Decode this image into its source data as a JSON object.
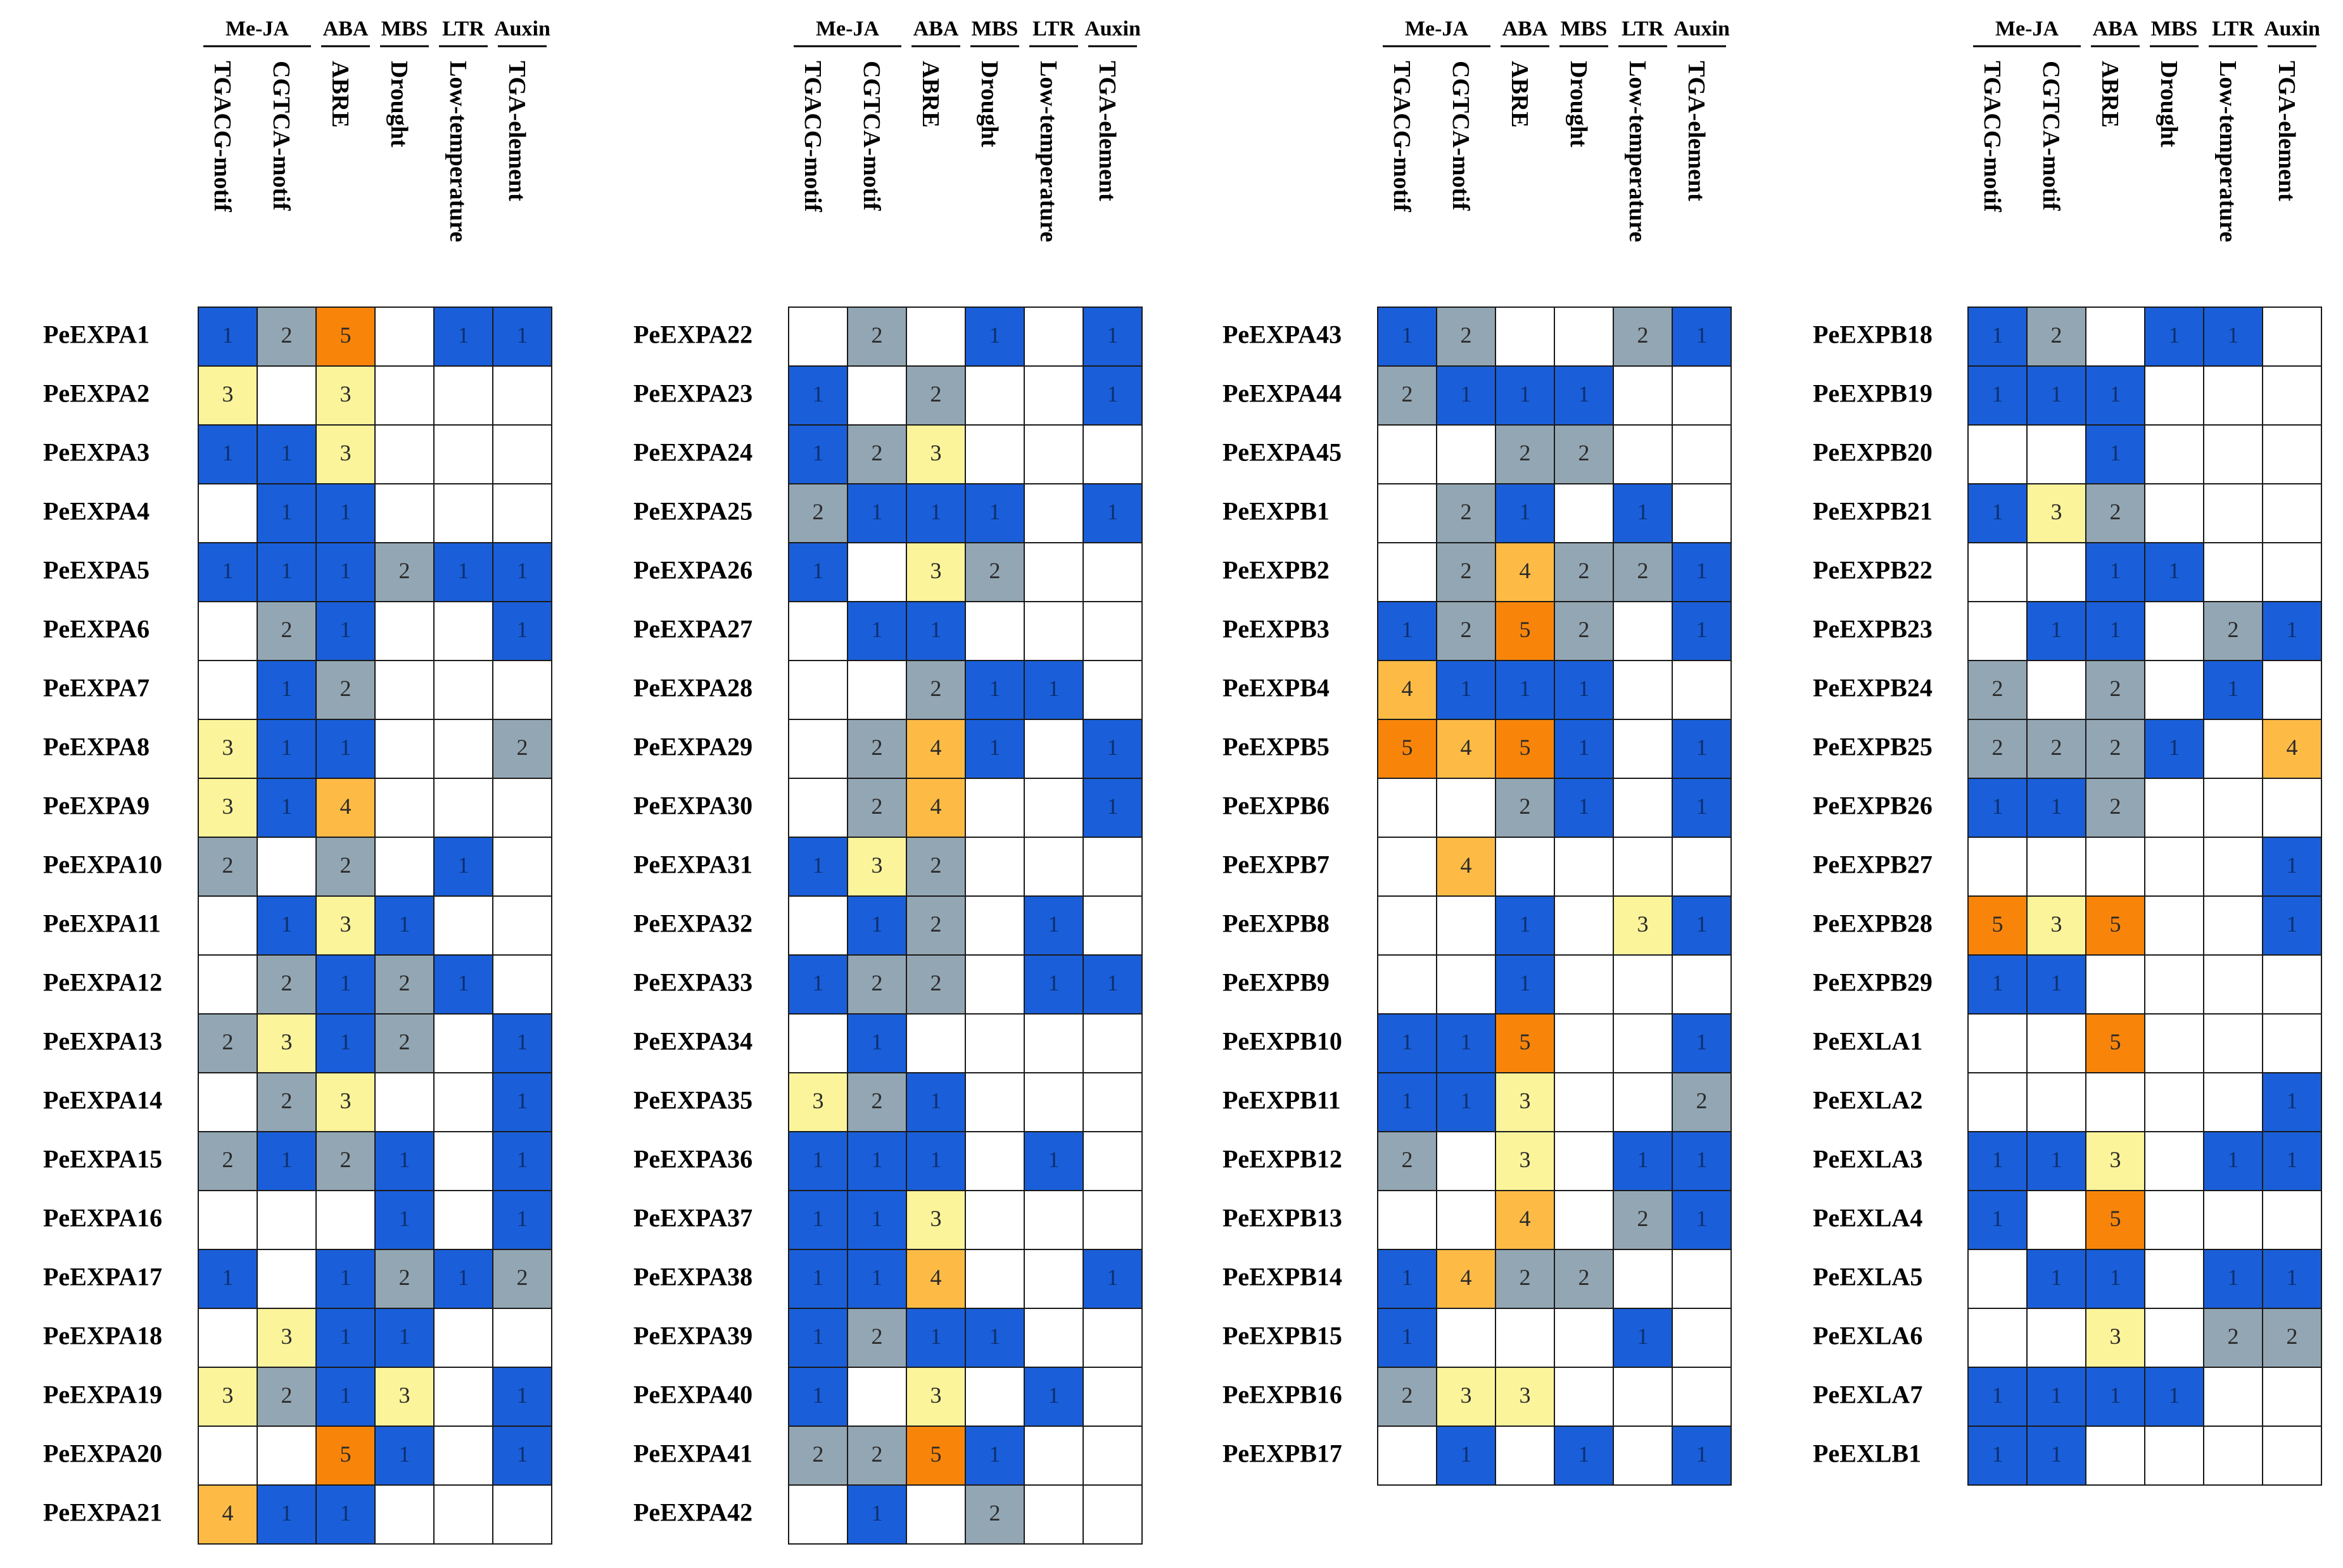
{
  "chart_data": {
    "type": "heatmap",
    "groups": [
      {
        "label": "Me-JA",
        "span": 2
      },
      {
        "label": "ABA",
        "span": 1
      },
      {
        "label": "MBS",
        "span": 1
      },
      {
        "label": "LTR",
        "span": 1
      },
      {
        "label": "Auxin",
        "span": 1
      }
    ],
    "columns": [
      "TGACG-motif",
      "CGTCA-motif",
      "ABRE",
      "Drought",
      "Low-temperature",
      "TGA-element"
    ],
    "color_scale": {
      "0": "#ffffff",
      "1": "#1a5fd9",
      "2": "#93a6b3",
      "3": "#fbf49a",
      "4": "#fdbb45",
      "5": "#f8850a"
    },
    "panels": [
      {
        "rows": [
          {
            "gene": "PeEXPA1",
            "values": [
              1,
              2,
              5,
              0,
              1,
              1
            ]
          },
          {
            "gene": "PeEXPA2",
            "values": [
              3,
              0,
              3,
              0,
              0,
              0
            ]
          },
          {
            "gene": "PeEXPA3",
            "values": [
              1,
              1,
              3,
              0,
              0,
              0
            ]
          },
          {
            "gene": "PeEXPA4",
            "values": [
              0,
              1,
              1,
              0,
              0,
              0
            ]
          },
          {
            "gene": "PeEXPA5",
            "values": [
              1,
              1,
              1,
              2,
              1,
              1
            ]
          },
          {
            "gene": "PeEXPA6",
            "values": [
              0,
              2,
              1,
              0,
              0,
              1
            ]
          },
          {
            "gene": "PeEXPA7",
            "values": [
              0,
              1,
              2,
              0,
              0,
              0
            ]
          },
          {
            "gene": "PeEXPA8",
            "values": [
              3,
              1,
              1,
              0,
              0,
              2
            ]
          },
          {
            "gene": "PeEXPA9",
            "values": [
              3,
              1,
              4,
              0,
              0,
              0
            ]
          },
          {
            "gene": "PeEXPA10",
            "values": [
              2,
              0,
              2,
              0,
              1,
              0
            ]
          },
          {
            "gene": "PeEXPA11",
            "values": [
              0,
              1,
              3,
              1,
              0,
              0
            ]
          },
          {
            "gene": "PeEXPA12",
            "values": [
              0,
              2,
              1,
              2,
              1,
              0
            ]
          },
          {
            "gene": "PeEXPA13",
            "values": [
              2,
              3,
              1,
              2,
              0,
              1
            ]
          },
          {
            "gene": "PeEXPA14",
            "values": [
              0,
              2,
              3,
              0,
              0,
              1
            ]
          },
          {
            "gene": "PeEXPA15",
            "values": [
              2,
              1,
              2,
              1,
              0,
              1
            ]
          },
          {
            "gene": "PeEXPA16",
            "values": [
              0,
              0,
              0,
              1,
              0,
              1
            ]
          },
          {
            "gene": "PeEXPA17",
            "values": [
              1,
              0,
              1,
              2,
              1,
              2
            ]
          },
          {
            "gene": "PeEXPA18",
            "values": [
              0,
              3,
              1,
              1,
              0,
              0
            ]
          },
          {
            "gene": "PeEXPA19",
            "values": [
              3,
              2,
              1,
              3,
              0,
              1
            ]
          },
          {
            "gene": "PeEXPA20",
            "values": [
              0,
              0,
              5,
              1,
              0,
              1
            ]
          },
          {
            "gene": "PeEXPA21",
            "values": [
              4,
              1,
              1,
              0,
              0,
              0
            ]
          }
        ]
      },
      {
        "rows": [
          {
            "gene": "PeEXPA22",
            "values": [
              0,
              2,
              0,
              1,
              0,
              1
            ]
          },
          {
            "gene": "PeEXPA23",
            "values": [
              1,
              0,
              2,
              0,
              0,
              1
            ]
          },
          {
            "gene": "PeEXPA24",
            "values": [
              1,
              2,
              3,
              0,
              0,
              0
            ]
          },
          {
            "gene": "PeEXPA25",
            "values": [
              2,
              1,
              1,
              1,
              0,
              1
            ]
          },
          {
            "gene": "PeEXPA26",
            "values": [
              1,
              0,
              3,
              2,
              0,
              0
            ]
          },
          {
            "gene": "PeEXPA27",
            "values": [
              0,
              1,
              1,
              0,
              0,
              0
            ]
          },
          {
            "gene": "PeEXPA28",
            "values": [
              0,
              0,
              2,
              1,
              1,
              0
            ]
          },
          {
            "gene": "PeEXPA29",
            "values": [
              0,
              2,
              4,
              1,
              0,
              1
            ]
          },
          {
            "gene": "PeEXPA30",
            "values": [
              0,
              2,
              4,
              0,
              0,
              1
            ]
          },
          {
            "gene": "PeEXPA31",
            "values": [
              1,
              3,
              2,
              0,
              0,
              0
            ]
          },
          {
            "gene": "PeEXPA32",
            "values": [
              0,
              1,
              2,
              0,
              1,
              0
            ]
          },
          {
            "gene": "PeEXPA33",
            "values": [
              1,
              2,
              2,
              0,
              1,
              1
            ]
          },
          {
            "gene": "PeEXPA34",
            "values": [
              0,
              1,
              0,
              0,
              0,
              0
            ]
          },
          {
            "gene": "PeEXPA35",
            "values": [
              3,
              2,
              1,
              0,
              0,
              0
            ]
          },
          {
            "gene": "PeEXPA36",
            "values": [
              1,
              1,
              1,
              0,
              1,
              0
            ]
          },
          {
            "gene": "PeEXPA37",
            "values": [
              1,
              1,
              3,
              0,
              0,
              0
            ]
          },
          {
            "gene": "PeEXPA38",
            "values": [
              1,
              1,
              4,
              0,
              0,
              1
            ]
          },
          {
            "gene": "PeEXPA39",
            "values": [
              1,
              2,
              1,
              1,
              0,
              0
            ]
          },
          {
            "gene": "PeEXPA40",
            "values": [
              1,
              0,
              3,
              0,
              1,
              0
            ]
          },
          {
            "gene": "PeEXPA41",
            "values": [
              2,
              2,
              5,
              1,
              0,
              0
            ]
          },
          {
            "gene": "PeEXPA42",
            "values": [
              0,
              1,
              0,
              2,
              0,
              0
            ]
          }
        ]
      },
      {
        "rows": [
          {
            "gene": "PeEXPA43",
            "values": [
              1,
              2,
              0,
              0,
              2,
              1
            ]
          },
          {
            "gene": "PeEXPA44",
            "values": [
              2,
              1,
              1,
              1,
              0,
              0
            ]
          },
          {
            "gene": "PeEXPA45",
            "values": [
              0,
              0,
              2,
              2,
              0,
              0
            ]
          },
          {
            "gene": "PeEXPB1",
            "values": [
              0,
              2,
              1,
              0,
              1,
              0
            ]
          },
          {
            "gene": "PeEXPB2",
            "values": [
              0,
              2,
              4,
              2,
              2,
              1
            ]
          },
          {
            "gene": "PeEXPB3",
            "values": [
              1,
              2,
              5,
              2,
              0,
              1
            ]
          },
          {
            "gene": "PeEXPB4",
            "values": [
              4,
              1,
              1,
              1,
              0,
              0
            ]
          },
          {
            "gene": "PeEXPB5",
            "values": [
              5,
              4,
              5,
              1,
              0,
              1
            ]
          },
          {
            "gene": "PeEXPB6",
            "values": [
              0,
              0,
              2,
              1,
              0,
              1
            ]
          },
          {
            "gene": "PeEXPB7",
            "values": [
              0,
              4,
              0,
              0,
              0,
              0
            ]
          },
          {
            "gene": "PeEXPB8",
            "values": [
              0,
              0,
              1,
              0,
              3,
              1
            ]
          },
          {
            "gene": "PeEXPB9",
            "values": [
              0,
              0,
              1,
              0,
              0,
              0
            ]
          },
          {
            "gene": "PeEXPB10",
            "values": [
              1,
              1,
              5,
              0,
              0,
              1
            ]
          },
          {
            "gene": "PeEXPB11",
            "values": [
              1,
              1,
              3,
              0,
              0,
              2
            ]
          },
          {
            "gene": "PeEXPB12",
            "values": [
              2,
              0,
              3,
              0,
              1,
              1
            ]
          },
          {
            "gene": "PeEXPB13",
            "values": [
              0,
              0,
              4,
              0,
              2,
              1
            ]
          },
          {
            "gene": "PeEXPB14",
            "values": [
              1,
              4,
              2,
              2,
              0,
              0
            ]
          },
          {
            "gene": "PeEXPB15",
            "values": [
              1,
              0,
              0,
              0,
              1,
              0
            ]
          },
          {
            "gene": "PeEXPB16",
            "values": [
              2,
              3,
              3,
              0,
              0,
              0
            ]
          },
          {
            "gene": "PeEXPB17",
            "values": [
              0,
              1,
              0,
              1,
              0,
              1
            ]
          }
        ]
      },
      {
        "rows": [
          {
            "gene": "PeEXPB18",
            "values": [
              1,
              2,
              0,
              1,
              1,
              0
            ]
          },
          {
            "gene": "PeEXPB19",
            "values": [
              1,
              1,
              1,
              0,
              0,
              0
            ]
          },
          {
            "gene": "PeEXPB20",
            "values": [
              0,
              0,
              1,
              0,
              0,
              0
            ]
          },
          {
            "gene": "PeEXPB21",
            "values": [
              1,
              3,
              2,
              0,
              0,
              0
            ]
          },
          {
            "gene": "PeEXPB22",
            "values": [
              0,
              0,
              1,
              1,
              0,
              0
            ]
          },
          {
            "gene": "PeEXPB23",
            "values": [
              0,
              1,
              1,
              0,
              2,
              1
            ]
          },
          {
            "gene": "PeEXPB24",
            "values": [
              2,
              0,
              2,
              0,
              1,
              0
            ]
          },
          {
            "gene": "PeEXPB25",
            "values": [
              2,
              2,
              2,
              1,
              0,
              4
            ]
          },
          {
            "gene": "PeEXPB26",
            "values": [
              1,
              1,
              2,
              0,
              0,
              0
            ]
          },
          {
            "gene": "PeEXPB27",
            "values": [
              0,
              0,
              0,
              0,
              0,
              1
            ]
          },
          {
            "gene": "PeEXPB28",
            "values": [
              5,
              3,
              5,
              0,
              0,
              1
            ]
          },
          {
            "gene": "PeEXPB29",
            "values": [
              1,
              1,
              0,
              0,
              0,
              0
            ]
          },
          {
            "gene": "PeEXLA1",
            "values": [
              0,
              0,
              5,
              0,
              0,
              0
            ]
          },
          {
            "gene": "PeEXLA2",
            "values": [
              0,
              0,
              0,
              0,
              0,
              1
            ]
          },
          {
            "gene": "PeEXLA3",
            "values": [
              1,
              1,
              3,
              0,
              1,
              1
            ]
          },
          {
            "gene": "PeEXLA4",
            "values": [
              1,
              0,
              5,
              0,
              0,
              0
            ]
          },
          {
            "gene": "PeEXLA5",
            "values": [
              0,
              1,
              1,
              0,
              1,
              1
            ]
          },
          {
            "gene": "PeEXLA6",
            "values": [
              0,
              0,
              3,
              0,
              2,
              2
            ]
          },
          {
            "gene": "PeEXLA7",
            "values": [
              1,
              1,
              1,
              1,
              0,
              0
            ]
          },
          {
            "gene": "PeEXLB1",
            "values": [
              1,
              1,
              0,
              0,
              0,
              0
            ]
          }
        ]
      }
    ]
  }
}
